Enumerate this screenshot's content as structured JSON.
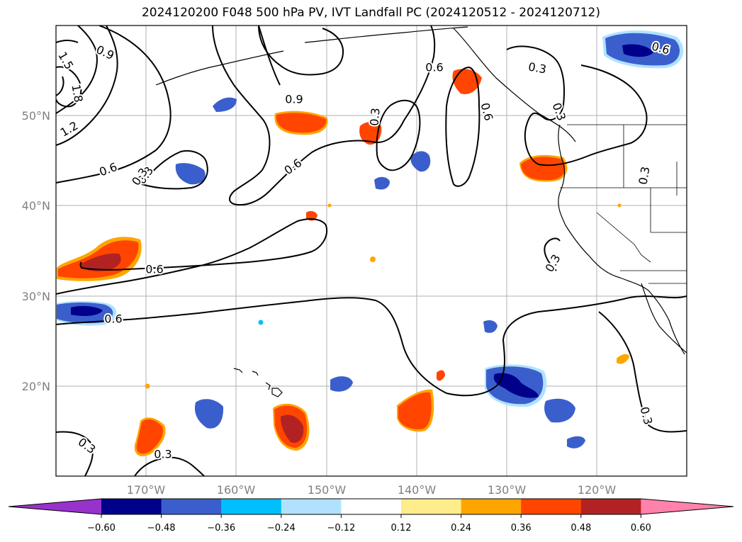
{
  "title": "2024120200 F048 500 hPa PV, IVT Landfall PC (2024120512 - 2024120712)",
  "lon_labels": [
    "170°W",
    "160°W",
    "150°W",
    "140°W",
    "130°W",
    "120°W"
  ],
  "lat_labels": [
    "50°N",
    "40°N",
    "30°N",
    "20°N"
  ],
  "colorbar": {
    "tick_labels": [
      "−0.60",
      "−0.48",
      "−0.36",
      "−0.24",
      "−0.12",
      "0.12",
      "0.24",
      "0.36",
      "0.48",
      "0.60"
    ],
    "colors": [
      "#9932cc",
      "#00008b",
      "#3a5fcd",
      "#00bfff",
      "#b0e2ff",
      "#ffffff",
      "#ffec8b",
      "#ffa500",
      "#ff4500",
      "#b22222",
      "#ff82ab"
    ]
  },
  "contour_labels": [
    "0.9",
    "1.5",
    "1.8",
    "1.2",
    "0.6",
    "0.3",
    "0.9",
    "0.6",
    "0.3",
    "0.6",
    "0.3",
    "0.3",
    "0.6",
    "0.3",
    "0.6",
    "0.3",
    "0.6",
    "0.3",
    "0.3",
    "0.3",
    "0.3",
    "0.6"
  ]
}
